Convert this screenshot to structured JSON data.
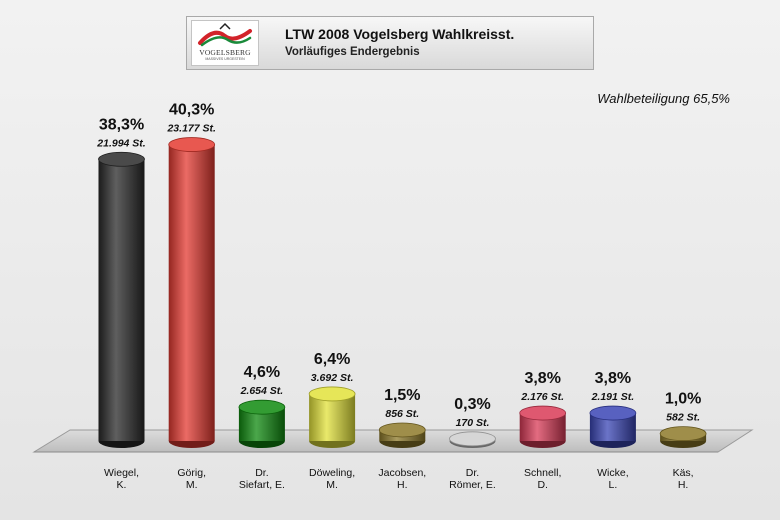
{
  "header": {
    "title": "LTW 2008 Vogelsberg Wahlkreisst.",
    "subtitle": "Vorläufiges Endergebnis",
    "logo_name": "VOGELSBERG",
    "logo_tagline": "MASSIVES URGESTEIN"
  },
  "turnout_label": "Wahlbeteiligung 65,5%",
  "chart_data": {
    "type": "bar",
    "title": "LTW 2008 Vogelsberg Wahlkreisst.",
    "subtitle": "Vorläufiges Endergebnis",
    "ylim": [
      0,
      45
    ],
    "grid": false,
    "legend": "none",
    "categories": [
      [
        "Wiegel,",
        "K."
      ],
      [
        "Görig,",
        "M."
      ],
      [
        "Dr.",
        "Siefart, E."
      ],
      [
        "Döweling,",
        "M."
      ],
      [
        "Jacobsen,",
        "H."
      ],
      [
        "Dr.",
        "Römer, E."
      ],
      [
        "Schnell,",
        "D."
      ],
      [
        "Wicke,",
        "L."
      ],
      [
        "Käs,",
        "H."
      ]
    ],
    "values": [
      38.3,
      40.3,
      4.6,
      6.4,
      1.5,
      0.3,
      3.8,
      3.8,
      1.0
    ],
    "percent_labels": [
      "38,3%",
      "40,3%",
      "4,6%",
      "6,4%",
      "1,5%",
      "0,3%",
      "3,8%",
      "3,8%",
      "1,0%"
    ],
    "votes": [
      21994,
      23177,
      2654,
      3692,
      856,
      170,
      2176,
      2191,
      582
    ],
    "vote_labels": [
      "21.994 St.",
      "23.177 St.",
      "2.654 St.",
      "3.692 St.",
      "856 St.",
      "170 St.",
      "2.176 St.",
      "2.191 St.",
      "582 St."
    ],
    "colors": [
      "#2a2a2a",
      "#e43a31",
      "#0f8a0f",
      "#e2e23a",
      "#8e7a2a",
      "#cfcfcf",
      "#d93b57",
      "#3a45b5",
      "#8e7a2a"
    ]
  }
}
